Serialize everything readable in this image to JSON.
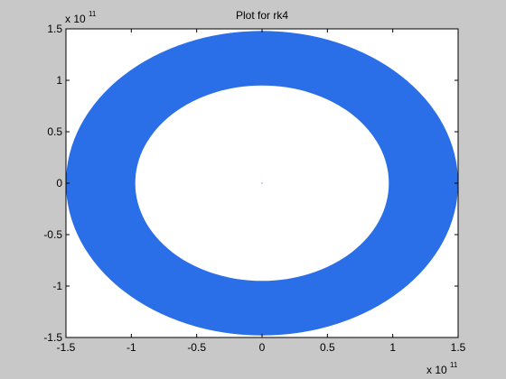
{
  "chart_data": {
    "type": "scatter",
    "title": "Plot for rk4",
    "xlabel": "",
    "ylabel": "",
    "xlim": [
      -1.5,
      1.5
    ],
    "ylim": [
      -1.5,
      1.5
    ],
    "x_ticks": [
      "-1.5",
      "-1",
      "-0.5",
      "0",
      "0.5",
      "1",
      "1.5"
    ],
    "y_ticks": [
      "-1.5",
      "-1",
      "-0.5",
      "0",
      "0.5",
      "1",
      "1.5"
    ],
    "x_multiplier": {
      "base": "x 10",
      "exponent": "11"
    },
    "y_multiplier": {
      "base": "x 10",
      "exponent": "11"
    },
    "grid": false,
    "legend": "none",
    "series": [
      {
        "kind": "orbit-band",
        "color": "#2a6ee8",
        "outer": {
          "rx": 1.5,
          "ry": 1.48
        },
        "inner": {
          "rx": 0.97,
          "ry": 0.95
        },
        "center": [
          0,
          0
        ]
      },
      {
        "kind": "central-point",
        "color": "#2a6ee8",
        "x": [
          0
        ],
        "y": [
          0
        ]
      }
    ],
    "colors": {
      "figure_background": "#c8c8c8",
      "axes_background": "#ffffff",
      "axis_line": "#000000"
    }
  }
}
